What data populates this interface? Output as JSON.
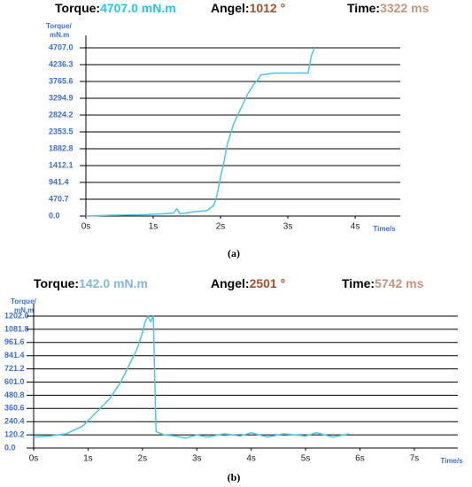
{
  "chart_data": [
    {
      "type": "line",
      "readouts": [
        {
          "label": "Torque:",
          "value": "4707.0 mN.m",
          "color": "#1fc8e8"
        },
        {
          "label": "Angel:",
          "value": "1012 °",
          "color": "#a0522d"
        },
        {
          "label": "Time:",
          "value": "3322 ms",
          "color": "#c89478"
        }
      ],
      "ylabel": [
        "Torque/",
        "mN.m"
      ],
      "xlabel": "Time/s",
      "caption": "(a)",
      "x": [
        0,
        0.3,
        0.6,
        0.9,
        1.0,
        1.3,
        1.35,
        1.4,
        1.6,
        1.8,
        1.9,
        1.95,
        2.0,
        2.05,
        2.1,
        2.2,
        2.3,
        2.4,
        2.5,
        2.55,
        2.6,
        2.8,
        3.0,
        3.3,
        3.35,
        3.4
      ],
      "values": [
        0,
        20,
        30,
        40,
        50,
        80,
        200,
        60,
        120,
        150,
        300,
        600,
        1100,
        1500,
        2000,
        2600,
        3000,
        3400,
        3700,
        3800,
        3950,
        4000,
        4000,
        4000,
        4500,
        4707
      ],
      "color": "#4cc6e6",
      "xlim": [
        0,
        4.67
      ],
      "ylim": [
        0,
        4707
      ],
      "xticks": [
        {
          "value": 0,
          "label": "0s"
        },
        {
          "value": 1,
          "label": "1s"
        },
        {
          "value": 2,
          "label": "2s"
        },
        {
          "value": 3,
          "label": "3s"
        },
        {
          "value": 4,
          "label": "4s"
        }
      ],
      "yticks": [
        {
          "value": 0,
          "label": "0.0"
        },
        470.7,
        941.4,
        1412.1,
        1882.8,
        2353.5,
        2824.2,
        3294.9,
        3765.6,
        4236.3,
        {
          "value": 4707,
          "label": "4707.0"
        }
      ],
      "grid": true
    },
    {
      "type": "line",
      "readouts": [
        {
          "label": "Torque:",
          "value": "142.0 mN.m",
          "color": "#7fb8e0"
        },
        {
          "label": "Angel:",
          "value": "2501 °",
          "color": "#a0522d"
        },
        {
          "label": "Time:",
          "value": "5742 ms",
          "color": "#c89478"
        }
      ],
      "ylabel": [
        "Torque/",
        "mN.m"
      ],
      "xlabel": "Time/s",
      "caption": "(b)",
      "x": [
        0,
        0.3,
        0.6,
        0.9,
        1.0,
        1.2,
        1.4,
        1.6,
        1.8,
        1.9,
        2.0,
        2.05,
        2.1,
        2.15,
        2.2,
        2.25,
        2.4,
        2.6,
        2.8,
        3.0,
        3.2,
        3.5,
        3.8,
        4.0,
        4.3,
        4.6,
        5.0,
        5.2,
        5.5,
        5.8
      ],
      "values": [
        100,
        110,
        130,
        200,
        250,
        350,
        450,
        600,
        800,
        900,
        1050,
        1150,
        1200,
        1150,
        1202,
        150,
        120,
        110,
        90,
        120,
        100,
        130,
        110,
        140,
        100,
        130,
        110,
        140,
        100,
        130
      ],
      "color": "#4cc6e6",
      "xlim": [
        0,
        7.8
      ],
      "ylim": [
        0,
        1202
      ],
      "xticks": [
        {
          "value": 0,
          "label": "0s"
        },
        {
          "value": 1,
          "label": "1s"
        },
        {
          "value": 2,
          "label": "2s"
        },
        {
          "value": 3,
          "label": "3s"
        },
        {
          "value": 4,
          "label": "4s"
        },
        {
          "value": 5,
          "label": "5s"
        },
        {
          "value": 6,
          "label": "6s"
        },
        {
          "value": 7,
          "label": "7s"
        }
      ],
      "yticks": [
        {
          "value": 0,
          "label": "0.0"
        },
        120.2,
        240.4,
        360.6,
        480.8,
        {
          "value": 601,
          "label": "601.0"
        },
        721.2,
        841.4,
        961.6,
        1081.8,
        {
          "value": 1202,
          "label": "1202.0"
        }
      ],
      "grid": true
    }
  ]
}
